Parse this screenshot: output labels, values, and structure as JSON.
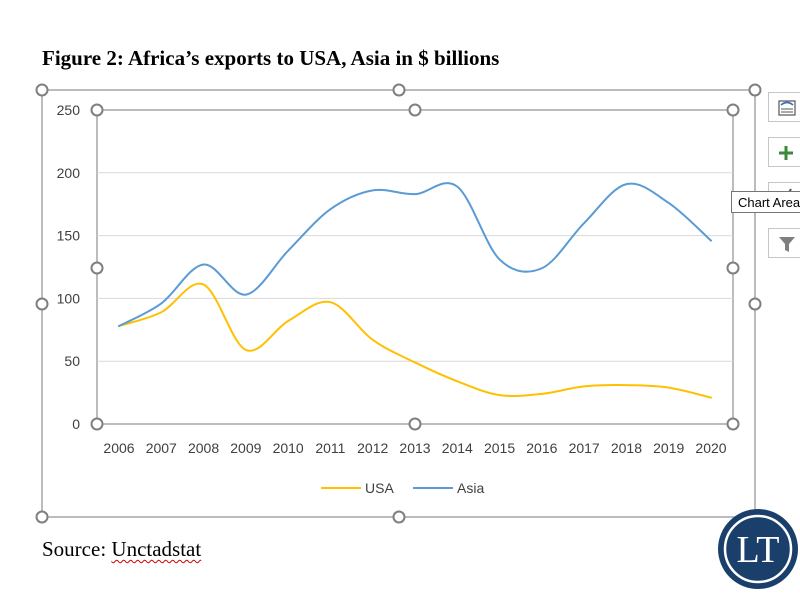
{
  "figure": {
    "title": "Figure 2: Africa’s exports to USA, Asia in $ billions",
    "source_prefix": "Source: ",
    "source_name": "Unctadstat"
  },
  "tooltip": {
    "label": "Chart Area"
  },
  "logo": {
    "text": "LT"
  },
  "side_buttons": [
    {
      "icon": "chart-styles-icon"
    },
    {
      "icon": "add-chart-element-icon"
    },
    {
      "icon": "chart-styles-icon"
    },
    {
      "icon": "chart-filter-icon"
    }
  ],
  "colors": {
    "usa": "#FFC000",
    "asia": "#5B9BD5",
    "grid": "#D9D9D9",
    "logo_bg": "#1b3f6b",
    "logo_ring": "#ffffff"
  },
  "chart_data": {
    "type": "line",
    "title": "",
    "xlabel": "",
    "ylabel": "",
    "categories": [
      "2006",
      "2007",
      "2008",
      "2009",
      "2010",
      "2011",
      "2012",
      "2013",
      "2014",
      "2015",
      "2016",
      "2017",
      "2018",
      "2019",
      "2020"
    ],
    "series": [
      {
        "name": "USA",
        "values": [
          78,
          89,
          111,
          59,
          82,
          97,
          67,
          49,
          34,
          23,
          24,
          30,
          31,
          29,
          21
        ]
      },
      {
        "name": "Asia",
        "values": [
          78,
          96,
          127,
          103,
          138,
          171,
          186,
          183,
          189,
          131,
          124,
          160,
          191,
          176,
          146
        ]
      }
    ],
    "yticks": [
      0,
      50,
      100,
      150,
      200,
      250
    ],
    "ylim": [
      0,
      250
    ],
    "grid": true,
    "legend": "bottom",
    "smooth": true
  }
}
